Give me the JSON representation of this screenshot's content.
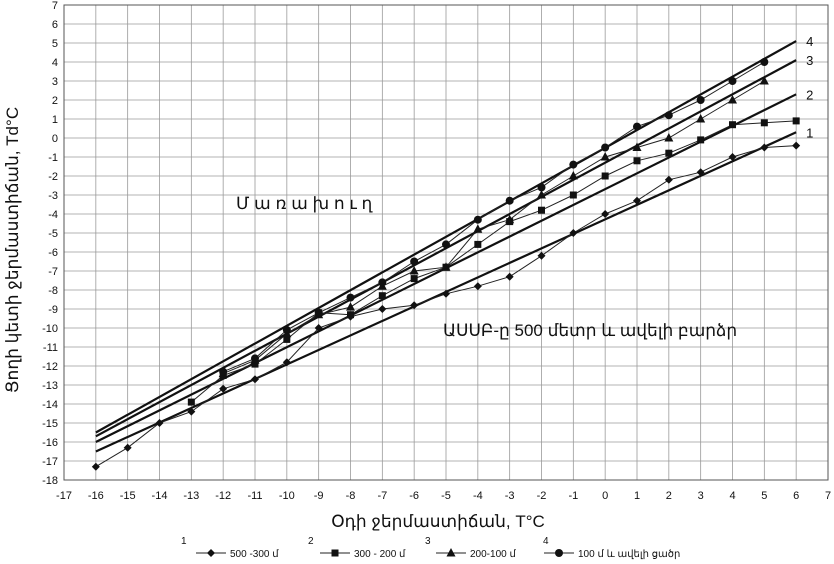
{
  "chart_data": {
    "type": "line",
    "xlabel": "Օդի ջերմաստիճան, T°C",
    "ylabel": "Ցողի կետի ջերմաստիճան, Td°C",
    "xlim": [
      -17,
      7
    ],
    "ylim": [
      -18,
      7
    ],
    "x_ticks": [
      -17,
      -16,
      -15,
      -14,
      -13,
      -12,
      -11,
      -10,
      -9,
      -8,
      -7,
      -6,
      -5,
      -4,
      -3,
      -2,
      -1,
      0,
      1,
      2,
      3,
      4,
      5,
      6,
      7
    ],
    "y_ticks": [
      -18,
      -17,
      -16,
      -15,
      -14,
      -13,
      -12,
      -11,
      -10,
      -9,
      -8,
      -7,
      -6,
      -5,
      -4,
      -3,
      -2,
      -1,
      0,
      1,
      2,
      3,
      4,
      5,
      6,
      7
    ],
    "grid": true,
    "annotations": [
      "Մ ա ռ ա խ ո ւ ղ",
      "ԱՍՍԲ-ը 500 մետր և ավելի բարձր"
    ],
    "curve_labels": [
      "1",
      "2",
      "3",
      "4"
    ],
    "legend": {
      "placement": "bottom",
      "entries": [
        {
          "number": "1",
          "label": "500 -300 մ",
          "marker": "diamond"
        },
        {
          "number": "2",
          "label": "300 - 200 մ",
          "marker": "square"
        },
        {
          "number": "3",
          "label": "200-100 մ",
          "marker": "triangle"
        },
        {
          "number": "4",
          "label": "100 մ և ավելի ցածր",
          "marker": "circle"
        }
      ]
    },
    "series": [
      {
        "name": "500 -300 մ",
        "marker": "diamond",
        "x": [
          -16,
          -15,
          -14,
          -13,
          -12,
          -11,
          -10,
          -9,
          -8,
          -7,
          -6,
          -5,
          -4,
          -3,
          -2,
          -1,
          0,
          1,
          2,
          3,
          4,
          5,
          6
        ],
        "y": [
          -17.3,
          -16.3,
          -15.0,
          -14.4,
          -13.2,
          -12.7,
          -11.8,
          -10.0,
          -9.4,
          -9.0,
          -8.8,
          -8.2,
          -7.8,
          -7.3,
          -6.2,
          -5.0,
          -4.0,
          -3.3,
          -2.2,
          -1.8,
          -1.0,
          -0.5,
          -0.4
        ]
      },
      {
        "name": "300 - 200 մ",
        "marker": "square",
        "x": [
          -13,
          -12,
          -11,
          -10,
          -9,
          -8,
          -7,
          -6,
          -5,
          -4,
          -3,
          -2,
          -1,
          0,
          1,
          2,
          3,
          4,
          5,
          6
        ],
        "y": [
          -13.9,
          -12.5,
          -11.9,
          -10.6,
          -9.2,
          -9.3,
          -8.3,
          -7.4,
          -6.8,
          -5.6,
          -4.4,
          -3.8,
          -3.0,
          -2.0,
          -1.2,
          -0.8,
          -0.1,
          0.7,
          0.8,
          0.9
        ]
      },
      {
        "name": "200-100 մ",
        "marker": "triangle",
        "x": [
          -12,
          -11,
          -10,
          -9,
          -8,
          -7,
          -6,
          -5,
          -4,
          -3,
          -2,
          -1,
          0,
          1,
          2,
          3,
          4,
          5
        ],
        "y": [
          -12.4,
          -11.7,
          -10.3,
          -9.3,
          -8.9,
          -7.8,
          -7.0,
          -6.8,
          -4.8,
          -4.3,
          -3.0,
          -2.0,
          -1.0,
          -0.5,
          0.0,
          1.0,
          2.0,
          3.0
        ]
      },
      {
        "name": "100 մ և ավելի ցածր",
        "marker": "circle",
        "x": [
          -12,
          -11,
          -10,
          -9,
          -8,
          -7,
          -6,
          -5,
          -4,
          -3,
          -2,
          -1,
          0,
          1,
          2,
          3,
          4,
          5
        ],
        "y": [
          -12.3,
          -11.6,
          -10.1,
          -9.2,
          -8.4,
          -7.6,
          -6.5,
          -5.6,
          -4.3,
          -3.3,
          -2.6,
          -1.4,
          -0.5,
          0.6,
          1.2,
          2.0,
          3.0,
          4.0
        ]
      }
    ],
    "fit_lines": [
      {
        "label": "1",
        "x": [
          -16,
          6
        ],
        "y": [
          -16.5,
          0.3
        ]
      },
      {
        "label": "2",
        "x": [
          -16,
          6
        ],
        "y": [
          -16.0,
          2.3
        ]
      },
      {
        "label": "3",
        "x": [
          -16,
          6
        ],
        "y": [
          -15.7,
          4.1
        ]
      },
      {
        "label": "4",
        "x": [
          -16,
          6
        ],
        "y": [
          -15.5,
          5.1
        ]
      }
    ]
  }
}
